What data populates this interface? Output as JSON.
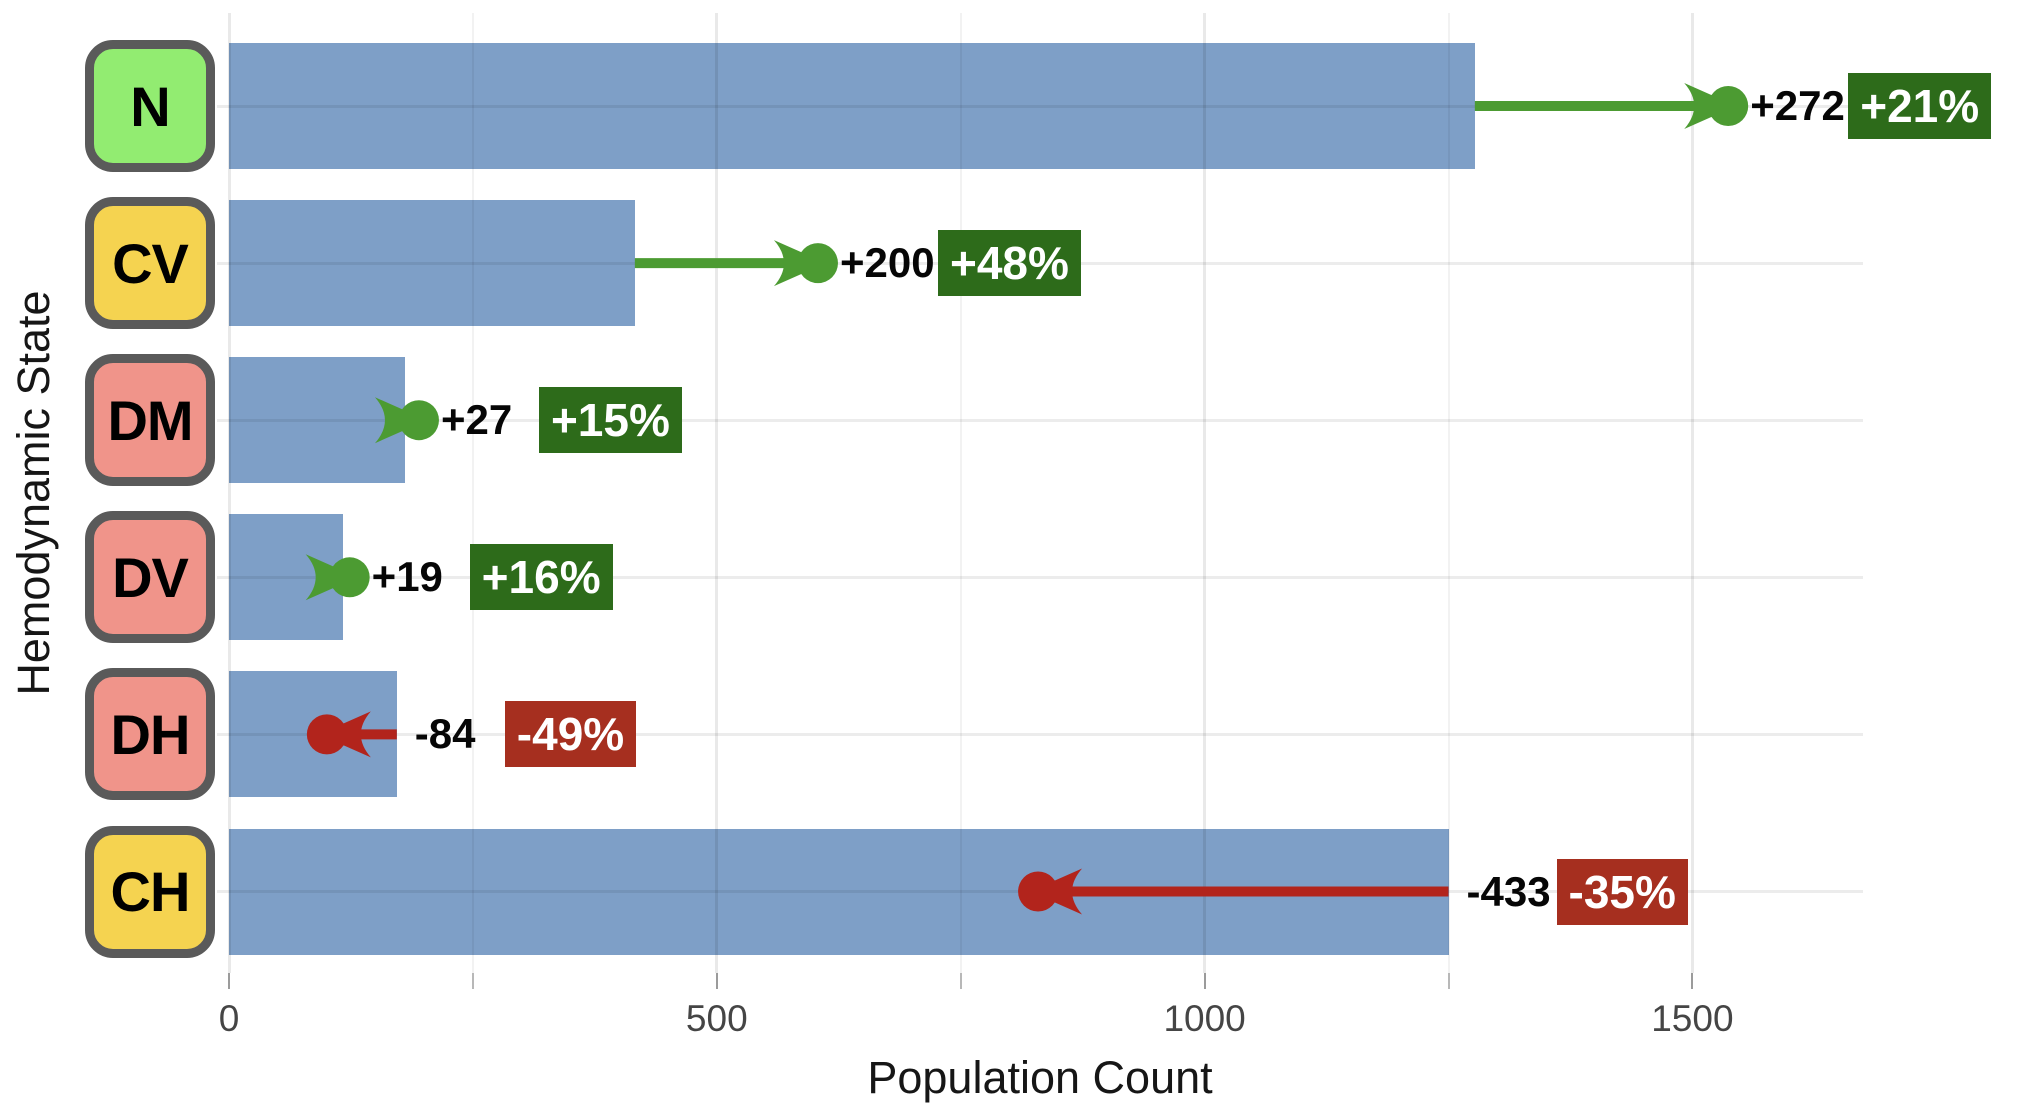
{
  "chart_data": {
    "type": "bar",
    "orientation": "horizontal",
    "title": "",
    "xlabel": "Population Count",
    "ylabel": "Hemodynamic State",
    "x_ticks": [
      "0",
      "500",
      "1000",
      "1500"
    ],
    "x_tick_values": [
      0,
      500,
      1000,
      1500
    ],
    "x_minor_tick_values": [
      250,
      750,
      1250
    ],
    "xlim": [
      0,
      1675
    ],
    "grid": true,
    "legend": false,
    "categories": [
      "N",
      "CV",
      "DM",
      "DV",
      "DH",
      "CH"
    ],
    "series": [
      {
        "name": "population_count",
        "values": [
          1277,
          416,
          180,
          117,
          172,
          1250
        ]
      },
      {
        "name": "change",
        "values": [
          272,
          200,
          27,
          19,
          -84,
          -433
        ]
      },
      {
        "name": "new_population_count",
        "values": [
          1549,
          616,
          207,
          136,
          88,
          817
        ]
      }
    ],
    "rows": [
      {
        "category": "N",
        "box_color": "#92EC71",
        "value": 1277,
        "change": 272,
        "change_label": "+272",
        "percent_label": "+21%",
        "trend": "increase"
      },
      {
        "category": "CV",
        "box_color": "#F5D350",
        "value": 416,
        "change": 200,
        "change_label": "+200",
        "percent_label": "+48%",
        "trend": "increase"
      },
      {
        "category": "DM",
        "box_color": "#F0948A",
        "value": 180,
        "change": 27,
        "change_label": "+27",
        "percent_label": "+15%",
        "trend": "increase"
      },
      {
        "category": "DV",
        "box_color": "#F0948A",
        "value": 117,
        "change": 19,
        "change_label": "+19",
        "percent_label": "+16%",
        "trend": "increase"
      },
      {
        "category": "DH",
        "box_color": "#F0948A",
        "value": 172,
        "change": -84,
        "change_label": "-84",
        "percent_label": "-49%",
        "trend": "decrease"
      },
      {
        "category": "CH",
        "box_color": "#F5D350",
        "value": 1250,
        "change": -433,
        "change_label": "-433",
        "percent_label": "-35%",
        "trend": "decrease"
      }
    ],
    "colors": {
      "bar": "#7E9FC7",
      "increase_arrow": "#4C9B32",
      "increase_badge": "#2D6B1A",
      "decrease_arrow": "#B2241C",
      "decrease_badge": "#A62F1F",
      "category_box_border": "#5A5A5A",
      "grid": "#E6E6E6"
    }
  }
}
